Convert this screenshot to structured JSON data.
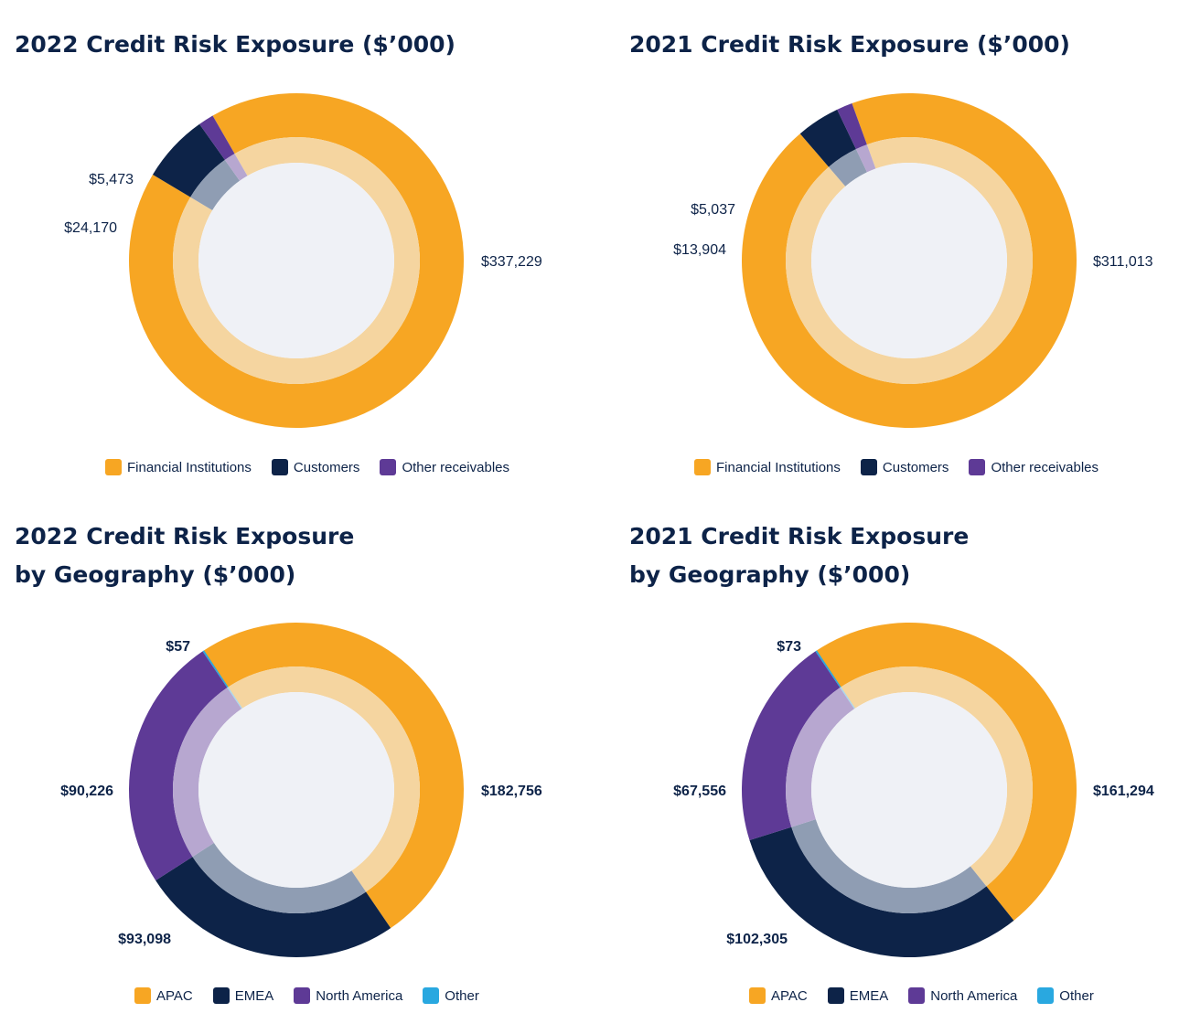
{
  "chart_data": [
    {
      "type": "pie",
      "title": "2022 Credit Risk Exposure ($’000)",
      "categories": [
        "Financial Institutions",
        "Customers",
        "Other receivables"
      ],
      "values": [
        337229,
        24170,
        5473
      ],
      "labels": [
        "$337,229",
        "$24,170",
        "$5,473"
      ],
      "colors": [
        "#f7a623",
        "#0d2348",
        "#5e3a96"
      ],
      "inner_colors": [
        "#f5d5a0",
        "#8f9db3",
        "#b7a7d0"
      ],
      "start_angle_deg": -30,
      "direction": "clockwise",
      "label_weight": "normal"
    },
    {
      "type": "pie",
      "title": "2021 Credit Risk Exposure ($’000)",
      "categories": [
        "Financial Institutions",
        "Customers",
        "Other receivables"
      ],
      "values": [
        311013,
        13904,
        5037
      ],
      "labels": [
        "$311,013",
        "$13,904",
        "$5,037"
      ],
      "colors": [
        "#f7a623",
        "#0d2348",
        "#5e3a96"
      ],
      "inner_colors": [
        "#f5d5a0",
        "#8f9db3",
        "#b7a7d0"
      ],
      "start_angle_deg": -20,
      "direction": "clockwise",
      "label_weight": "normal"
    },
    {
      "type": "pie",
      "title": "2022 Credit Risk Exposure by Geography ($’000)",
      "title_lines": [
        "2022 Credit Risk Exposure",
        "by Geography ($’000)"
      ],
      "categories": [
        "APAC",
        "EMEA",
        "North America",
        "Other"
      ],
      "values": [
        182756,
        93098,
        90226,
        57
      ],
      "labels": [
        "$182,756",
        "$93,098",
        "$90,226",
        "$57"
      ],
      "colors": [
        "#f7a623",
        "#0d2348",
        "#5e3a96",
        "#29a8e0"
      ],
      "inner_colors": [
        "#f5d5a0",
        "#8f9db3",
        "#b7a7d0",
        "#a9d9f0"
      ],
      "start_angle_deg": -34,
      "direction": "clockwise",
      "label_weight": "bold"
    },
    {
      "type": "pie",
      "title": "2021 Credit Risk Exposure by Geography ($’000)",
      "title_lines": [
        "2021 Credit Risk Exposure",
        "by Geography ($’000)"
      ],
      "categories": [
        "APAC",
        "EMEA",
        "North America",
        "Other"
      ],
      "values": [
        161294,
        102305,
        67556,
        73
      ],
      "labels": [
        "$161,294",
        "$102,305",
        "$67,556",
        "$73"
      ],
      "colors": [
        "#f7a623",
        "#0d2348",
        "#5e3a96",
        "#29a8e0"
      ],
      "inner_colors": [
        "#f5d5a0",
        "#8f9db3",
        "#b7a7d0",
        "#a9d9f0"
      ],
      "start_angle_deg": -34,
      "direction": "clockwise",
      "label_weight": "bold"
    }
  ],
  "style": {
    "center_color": "#eff1f6",
    "text_color": "#0d2348"
  }
}
